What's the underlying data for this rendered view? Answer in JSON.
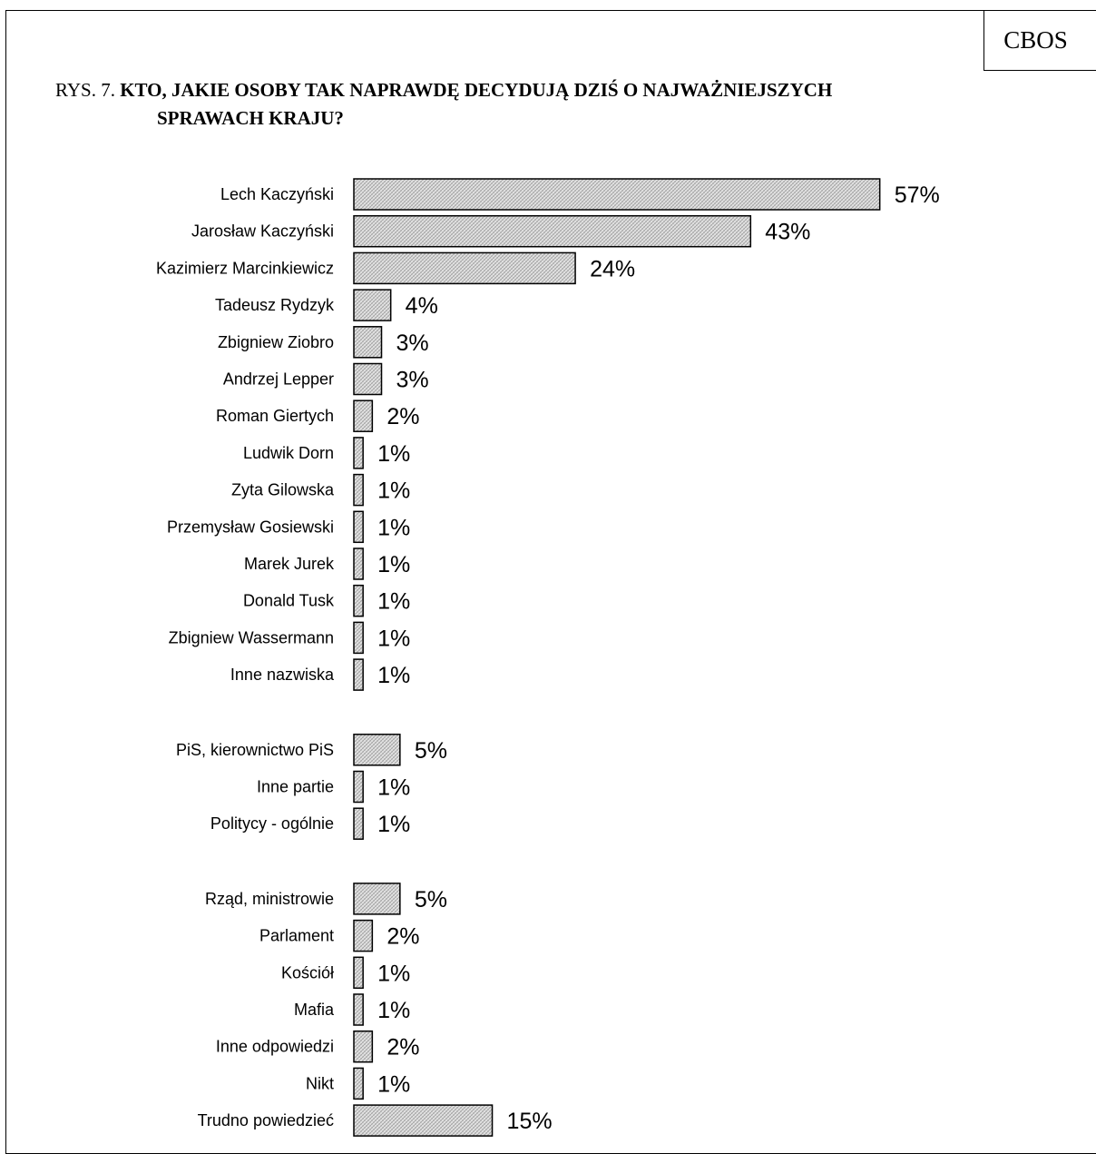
{
  "brand": "CBOS",
  "figure": {
    "prefix": "RYS. 7.",
    "title_line1": "KTO, JAKIE OSOBY TAK NAPRAWDĘ DECYDUJĄ DZIŚ O NAJWAŻNIEJSZYCH",
    "title_line2": "SPRAWACH KRAJU?"
  },
  "colors": {
    "bar_fill": "#d9d9d9",
    "bar_stroke": "#000000",
    "text": "#000000"
  },
  "chart_data": {
    "type": "bar",
    "orientation": "horizontal",
    "title": "KTO, JAKIE OSOBY TAK NAPRAWDĘ DECYDUJĄ DZIŚ O NAJWAŻNIEJSZYCH SPRAWACH KRAJU?",
    "unit": "%",
    "grid": false,
    "groups": [
      {
        "categories": [
          "Lech Kaczyński",
          "Jarosław Kaczyński",
          "Kazimierz Marcinkiewicz",
          "Tadeusz Rydzyk",
          "Zbigniew Ziobro",
          "Andrzej Lepper",
          "Roman Giertych",
          "Ludwik Dorn",
          "Zyta Gilowska",
          "Przemysław Gosiewski",
          "Marek Jurek",
          "Donald Tusk",
          "Zbigniew Wassermann",
          "Inne nazwiska"
        ],
        "values": [
          57,
          43,
          24,
          4,
          3,
          3,
          2,
          1,
          1,
          1,
          1,
          1,
          1,
          1
        ]
      },
      {
        "categories": [
          "PiS, kierownictwo PiS",
          "Inne partie",
          "Politycy - ogólnie"
        ],
        "values": [
          5,
          1,
          1
        ]
      },
      {
        "categories": [
          "Rząd, ministrowie",
          "Parlament",
          "Kościół",
          "Mafia",
          "Inne odpowiedzi",
          "Nikt",
          "Trudno powiedzieć"
        ],
        "values": [
          5,
          2,
          1,
          1,
          2,
          1,
          15
        ]
      }
    ]
  }
}
